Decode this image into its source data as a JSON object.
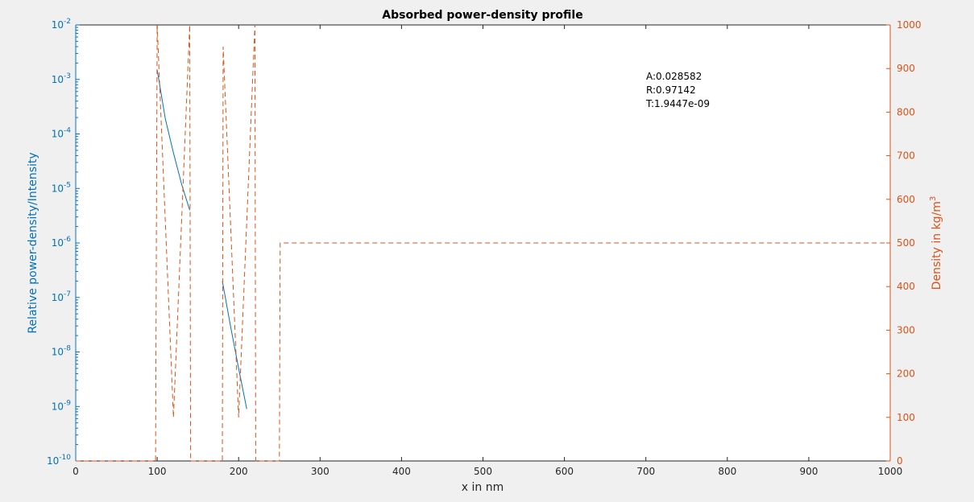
{
  "chart_data": {
    "type": "line",
    "title": "Absorbed power-density profile",
    "xlabel": "x in nm",
    "ylabel_left": "Relative power-density/Intensity",
    "ylabel_right": {
      "text": "Density in kg/m",
      "superscript": "3"
    },
    "xlim": [
      0,
      1000
    ],
    "xticks": [
      0,
      100,
      200,
      300,
      400,
      500,
      600,
      700,
      800,
      900,
      1000
    ],
    "ylim_left": [
      -10,
      -2
    ],
    "yscale_left": "log",
    "yticks_left": [
      {
        "base": "10",
        "exp": "-10",
        "value": -10
      },
      {
        "base": "10",
        "exp": "-9",
        "value": -9
      },
      {
        "base": "10",
        "exp": "-8",
        "value": -8
      },
      {
        "base": "10",
        "exp": "-7",
        "value": -7
      },
      {
        "base": "10",
        "exp": "-6",
        "value": -6
      },
      {
        "base": "10",
        "exp": "-5",
        "value": -5
      },
      {
        "base": "10",
        "exp": "-4",
        "value": -4
      },
      {
        "base": "10",
        "exp": "-3",
        "value": -3
      },
      {
        "base": "10",
        "exp": "-2",
        "value": -2
      }
    ],
    "ylim_right": [
      0,
      1000
    ],
    "yticks_right": [
      0,
      100,
      200,
      300,
      400,
      500,
      600,
      700,
      800,
      900,
      1000
    ],
    "colors": {
      "left": "#0072bd",
      "right": "#d95319",
      "axis": "#262626",
      "background": "#f0f0f0"
    },
    "grid": false,
    "annotations": [
      "A:0.028582",
      "R:0.97142",
      "T:1.9447e-09"
    ],
    "series": [
      {
        "axis": "left",
        "style": "solid",
        "color": "#0072bd",
        "x": [
          100,
          110,
          120,
          130,
          140
        ],
        "y": [
          0.0015,
          0.00019,
          4.5e-05,
          1.2e-05,
          4e-06
        ]
      },
      {
        "axis": "left",
        "style": "solid",
        "color": "#0072bd",
        "x": [
          180,
          190,
          200,
          210
        ],
        "y": [
          2e-07,
          3e-08,
          5e-09,
          9e-10
        ]
      },
      {
        "axis": "right",
        "style": "dashed",
        "color": "#d95319",
        "x": [
          0,
          98,
          100,
          120,
          140,
          141,
          180,
          181,
          200,
          220,
          221,
          250,
          251,
          1000
        ],
        "y": [
          0,
          0,
          1000,
          100,
          1000,
          0,
          0,
          950,
          100,
          1000,
          0,
          0,
          500,
          500
        ]
      }
    ]
  }
}
